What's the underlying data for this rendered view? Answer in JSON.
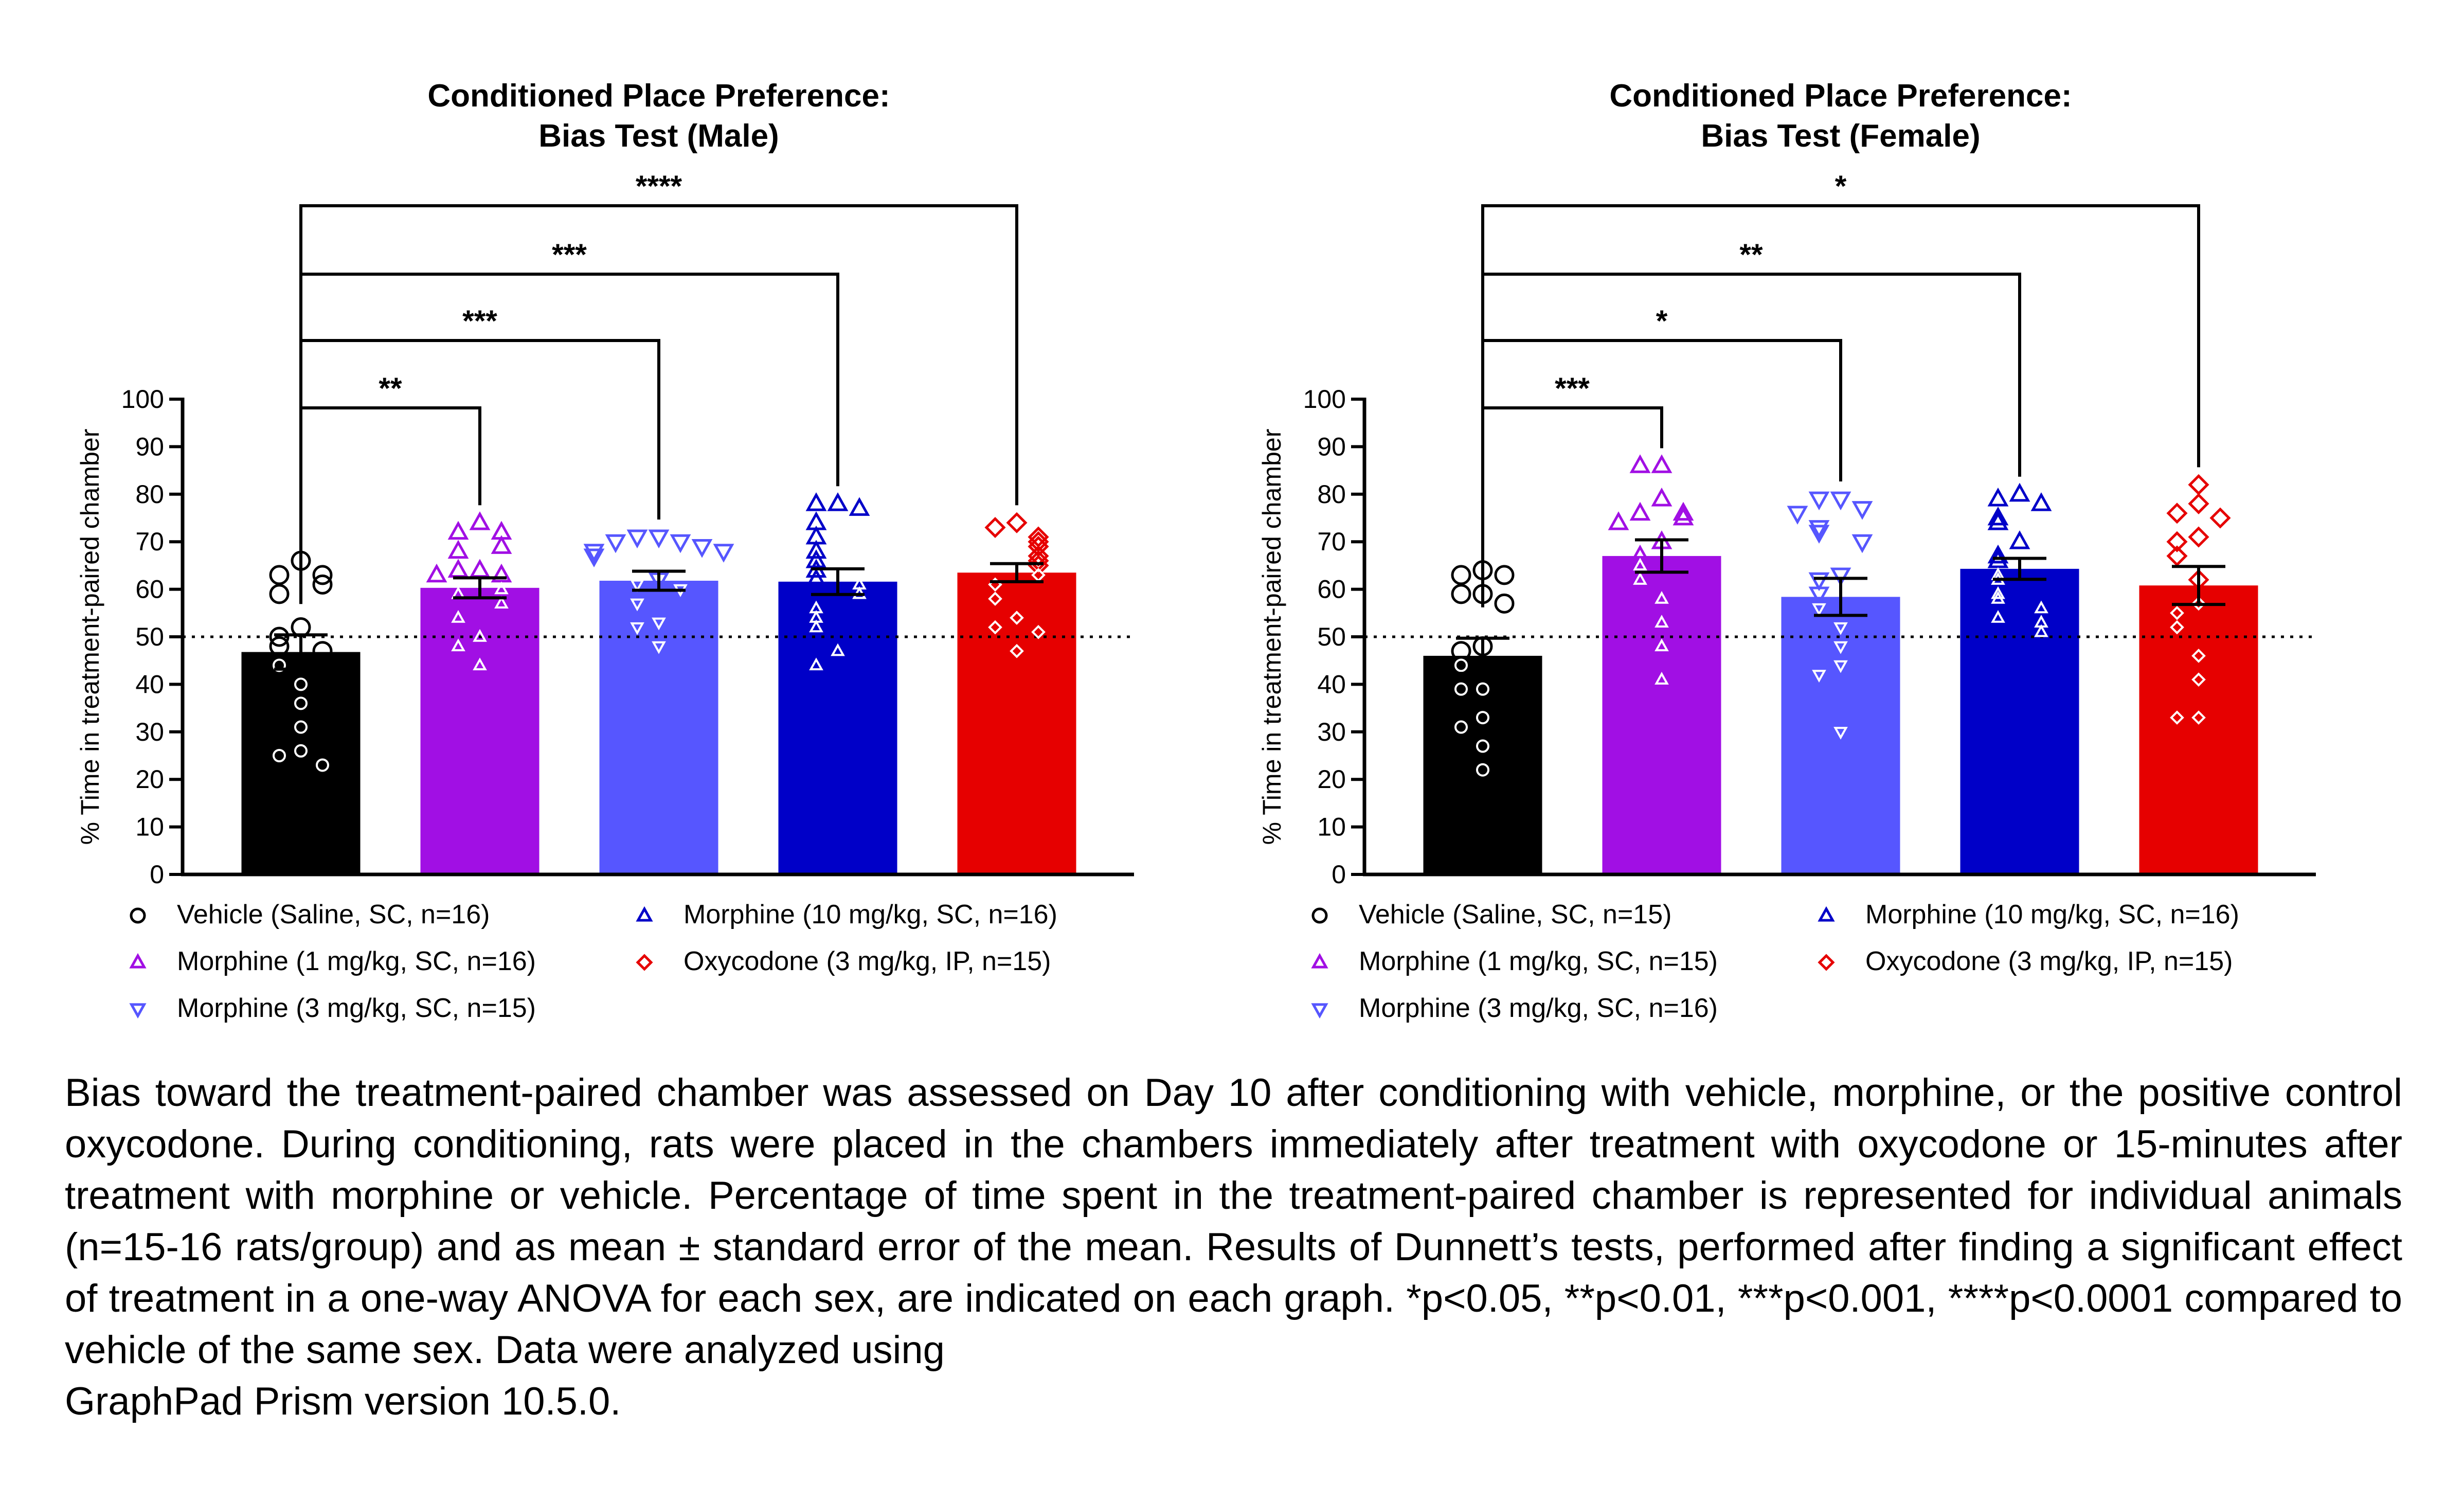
{
  "chart_data": [
    {
      "type": "bar",
      "title": "Conditioned Place Preference:\nBias Test (Male)",
      "ylabel": "% Time in treatment-paired chamber",
      "ylim": [
        0,
        100
      ],
      "yticks": [
        0,
        10,
        20,
        30,
        40,
        50,
        60,
        70,
        80,
        90,
        100
      ],
      "reference_line": 50,
      "categories": [
        "Vehicle (Saline, SC, n=16)",
        "Morphine (1 mg/kg, SC, n=16)",
        "Morphine (3 mg/kg, SC, n=15)",
        "Morphine (10 mg/kg, SC, n=16)",
        "Oxycodone (3 mg/kg, IP, n=15)"
      ],
      "series": [
        {
          "name": "Vehicle (Saline, SC, n=16)",
          "color": "#000000",
          "marker": "circle",
          "mean": 46.8,
          "sem": 3.6,
          "points": [
            66,
            63,
            63,
            61,
            59,
            52,
            50,
            48,
            47,
            44,
            40,
            36,
            31,
            26,
            25,
            23
          ]
        },
        {
          "name": "Morphine (1 mg/kg, SC, n=16)",
          "color": "#a10fe4",
          "marker": "triangle-up",
          "mean": 60.3,
          "sem": 2.1,
          "points": [
            74,
            72,
            72,
            69,
            68,
            64,
            64,
            63,
            63,
            60,
            59,
            57,
            54,
            50,
            48,
            44
          ]
        },
        {
          "name": "Morphine (3 mg/kg, SC, n=15)",
          "color": "#5656ff",
          "marker": "triangle-down",
          "mean": 61.8,
          "sem": 2.0,
          "points": [
            71,
            71,
            70,
            70,
            69,
            68,
            68,
            67,
            62,
            61,
            60,
            57,
            53,
            52,
            48
          ]
        },
        {
          "name": "Morphine (10 mg/kg, SC, n=16)",
          "color": "#0000c8",
          "marker": "triangle-up",
          "mean": 61.6,
          "sem": 2.7,
          "points": [
            78,
            78,
            77,
            74,
            71,
            68,
            66,
            64,
            62,
            61,
            59,
            56,
            54,
            52,
            47,
            44
          ]
        },
        {
          "name": "Oxycodone (3 mg/kg, IP, n=15)",
          "color": "#e60000",
          "marker": "diamond",
          "mean": 63.5,
          "sem": 1.9,
          "points": [
            74,
            73,
            71,
            70,
            69,
            67,
            66,
            65,
            63,
            61,
            58,
            54,
            52,
            51,
            47
          ]
        }
      ],
      "comparisons": [
        {
          "to": 1,
          "label": "**"
        },
        {
          "to": 2,
          "label": "***"
        },
        {
          "to": 3,
          "label": "***"
        },
        {
          "to": 4,
          "label": "****"
        }
      ]
    },
    {
      "type": "bar",
      "title": "Conditioned Place Preference:\nBias Test (Female)",
      "ylabel": "% Time in treatment-paired chamber",
      "ylim": [
        0,
        100
      ],
      "yticks": [
        0,
        10,
        20,
        30,
        40,
        50,
        60,
        70,
        80,
        90,
        100
      ],
      "reference_line": 50,
      "categories": [
        "Vehicle (Saline, SC, n=15)",
        "Morphine (1 mg/kg, SC, n=15)",
        "Morphine (3 mg/kg, SC, n=16)",
        "Morphine (10 mg/kg, SC, n=16)",
        "Oxycodone (3 mg/kg, IP, n=15)"
      ],
      "series": [
        {
          "name": "Vehicle (Saline, SC, n=15)",
          "color": "#000000",
          "marker": "circle",
          "mean": 46.0,
          "sem": 3.7,
          "points": [
            64,
            63,
            63,
            59,
            59,
            57,
            48,
            47,
            44,
            39,
            39,
            33,
            31,
            27,
            22
          ]
        },
        {
          "name": "Morphine (1 mg/kg, SC, n=15)",
          "color": "#a10fe4",
          "marker": "triangle-up",
          "mean": 67.0,
          "sem": 3.4,
          "points": [
            86,
            86,
            79,
            76,
            76,
            75,
            74,
            70,
            67,
            65,
            62,
            58,
            53,
            48,
            41
          ]
        },
        {
          "name": "Morphine (3 mg/kg, SC, n=16)",
          "color": "#5656ff",
          "marker": "triangle-down",
          "mean": 58.4,
          "sem": 3.9,
          "points": [
            79,
            79,
            77,
            76,
            73,
            72,
            70,
            63,
            62,
            59,
            56,
            52,
            48,
            44,
            42,
            30
          ]
        },
        {
          "name": "Morphine (10 mg/kg, SC, n=16)",
          "color": "#0000c8",
          "marker": "triangle-up",
          "mean": 64.3,
          "sem": 2.2,
          "points": [
            80,
            79,
            78,
            75,
            74,
            70,
            67,
            66,
            63,
            62,
            59,
            58,
            56,
            54,
            53,
            51
          ]
        },
        {
          "name": "Oxycodone (3 mg/kg, IP, n=15)",
          "color": "#e60000",
          "marker": "diamond",
          "mean": 60.8,
          "sem": 4.0,
          "points": [
            82,
            78,
            76,
            75,
            71,
            70,
            67,
            62,
            57,
            55,
            52,
            46,
            41,
            33,
            33
          ]
        }
      ],
      "comparisons": [
        {
          "to": 1,
          "label": "***"
        },
        {
          "to": 2,
          "label": "*"
        },
        {
          "to": 3,
          "label": "**"
        },
        {
          "to": 4,
          "label": "*"
        }
      ]
    }
  ],
  "caption": [
    "Bias toward the treatment-paired chamber was assessed on Day 10 after conditioning with vehicle, morphine, or the positive control oxycodone. During conditioning, rats were placed in the chambers immediately after treatment with oxycodone or 15-minutes after treatment with morphine or vehicle. Percentage of time spent in the treatment-paired chamber is represented for individual animals (n=15-16 rats/group) and as mean ± standard error of the mean. Results of Dunnett’s tests, performed after finding a significant effect of treatment in a one-way ANOVA for each sex, are indicated on each graph. *p<0.05, **p<0.01, ***p<0.001, ****p<0.0001 compared to vehicle of the same sex. Data were analyzed using",
    "GraphPad Prism version 10.5.0."
  ]
}
